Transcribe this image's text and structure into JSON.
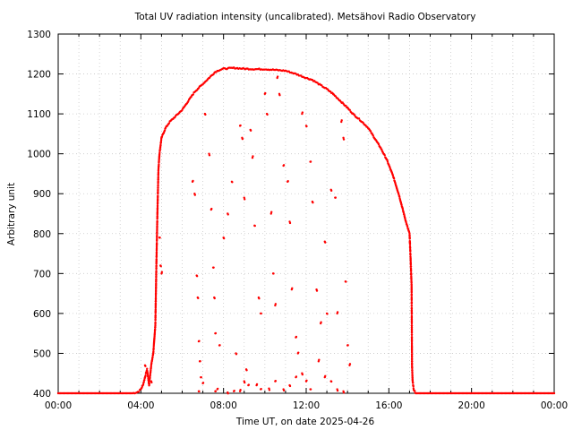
{
  "chart_data": {
    "type": "scatter",
    "title": "Total UV radiation intensity (uncalibrated). Metsähovi Radio Observatory",
    "xlabel": "Time UT, on date 2025-04-26",
    "ylabel": "Arbitrary unit",
    "x_unit": "hours UT",
    "xlim": [
      0,
      24
    ],
    "ylim": [
      400,
      1300
    ],
    "x_ticks": [
      {
        "value": 0,
        "label": "00:00"
      },
      {
        "value": 4,
        "label": "04:00"
      },
      {
        "value": 8,
        "label": "08:00"
      },
      {
        "value": 12,
        "label": "12:00"
      },
      {
        "value": 16,
        "label": "16:00"
      },
      {
        "value": 20,
        "label": "20:00"
      },
      {
        "value": 24,
        "label": "00:00"
      }
    ],
    "y_ticks": [
      400,
      500,
      600,
      700,
      800,
      900,
      1000,
      1100,
      1200,
      1300
    ],
    "grid": true,
    "grid_style": "dotted",
    "legend": "none",
    "color": "#ff0000",
    "series": [
      {
        "values": [
          [
            0.0,
            400
          ],
          [
            3.6,
            400
          ],
          [
            3.8,
            402
          ],
          [
            3.9,
            405
          ],
          [
            4.0,
            410
          ],
          [
            4.1,
            420
          ],
          [
            4.2,
            440
          ],
          [
            4.3,
            460
          ],
          [
            4.4,
            420
          ],
          [
            4.5,
            470
          ],
          [
            4.6,
            500
          ],
          [
            4.7,
            570
          ],
          [
            4.75,
            720
          ],
          [
            4.8,
            850
          ],
          [
            4.85,
            960
          ],
          [
            4.9,
            1000
          ],
          [
            4.95,
            1020
          ],
          [
            5.0,
            1040
          ],
          [
            5.2,
            1065
          ],
          [
            5.4,
            1080
          ],
          [
            5.6,
            1090
          ],
          [
            5.8,
            1100
          ],
          [
            6.0,
            1110
          ],
          [
            6.2,
            1125
          ],
          [
            6.4,
            1140
          ],
          [
            6.6,
            1155
          ],
          [
            6.8,
            1165
          ],
          [
            7.0,
            1175
          ],
          [
            7.2,
            1185
          ],
          [
            7.4,
            1195
          ],
          [
            7.6,
            1205
          ],
          [
            7.8,
            1210
          ],
          [
            8.0,
            1213
          ],
          [
            8.5,
            1215
          ],
          [
            9.0,
            1213
          ],
          [
            9.5,
            1212
          ],
          [
            10.0,
            1212
          ],
          [
            10.5,
            1210
          ],
          [
            11.0,
            1208
          ],
          [
            11.5,
            1200
          ],
          [
            12.0,
            1190
          ],
          [
            12.3,
            1185
          ],
          [
            12.6,
            1175
          ],
          [
            13.0,
            1162
          ],
          [
            13.3,
            1150
          ],
          [
            13.6,
            1135
          ],
          [
            14.0,
            1115
          ],
          [
            14.3,
            1098
          ],
          [
            14.6,
            1085
          ],
          [
            15.0,
            1065
          ],
          [
            15.3,
            1040
          ],
          [
            15.6,
            1015
          ],
          [
            15.9,
            985
          ],
          [
            16.2,
            945
          ],
          [
            16.5,
            895
          ],
          [
            16.7,
            855
          ],
          [
            16.85,
            825
          ],
          [
            17.0,
            800
          ],
          [
            17.05,
            740
          ],
          [
            17.1,
            670
          ],
          [
            17.12,
            470
          ],
          [
            17.15,
            430
          ],
          [
            17.2,
            410
          ],
          [
            17.3,
            400
          ],
          [
            24.0,
            400
          ]
        ]
      },
      {
        "values": [
          [
            4.9,
            790
          ],
          [
            4.95,
            720
          ],
          [
            5.0,
            700
          ],
          [
            6.5,
            930
          ],
          [
            6.6,
            900
          ],
          [
            6.7,
            695
          ],
          [
            6.75,
            640
          ],
          [
            6.8,
            530
          ],
          [
            6.85,
            480
          ],
          [
            6.9,
            440
          ],
          [
            7.1,
            1100
          ],
          [
            7.3,
            1000
          ],
          [
            7.4,
            860
          ],
          [
            7.5,
            715
          ],
          [
            7.55,
            640
          ],
          [
            7.6,
            550
          ],
          [
            7.7,
            410
          ],
          [
            7.8,
            520
          ],
          [
            8.0,
            790
          ],
          [
            8.2,
            850
          ],
          [
            8.4,
            930
          ],
          [
            8.6,
            500
          ],
          [
            8.8,
            1070
          ],
          [
            8.9,
            1040
          ],
          [
            9.0,
            890
          ],
          [
            9.1,
            460
          ],
          [
            9.3,
            1060
          ],
          [
            9.4,
            990
          ],
          [
            9.5,
            820
          ],
          [
            9.7,
            640
          ],
          [
            9.8,
            600
          ],
          [
            10.0,
            1150
          ],
          [
            10.1,
            1100
          ],
          [
            10.3,
            850
          ],
          [
            10.4,
            700
          ],
          [
            10.5,
            620
          ],
          [
            10.6,
            1190
          ],
          [
            10.7,
            1150
          ],
          [
            10.9,
            970
          ],
          [
            11.1,
            930
          ],
          [
            11.2,
            830
          ],
          [
            11.3,
            660
          ],
          [
            11.5,
            540
          ],
          [
            11.6,
            500
          ],
          [
            11.8,
            1100
          ],
          [
            12.0,
            1070
          ],
          [
            12.2,
            980
          ],
          [
            12.3,
            880
          ],
          [
            12.5,
            660
          ],
          [
            12.7,
            575
          ],
          [
            12.9,
            780
          ],
          [
            13.0,
            600
          ],
          [
            13.2,
            910
          ],
          [
            13.3,
            1150
          ],
          [
            13.4,
            890
          ],
          [
            13.5,
            600
          ],
          [
            13.7,
            1080
          ],
          [
            13.8,
            1040
          ],
          [
            13.9,
            680
          ],
          [
            14.0,
            520
          ]
        ]
      },
      {
        "values": [
          [
            4.2,
            470
          ],
          [
            4.5,
            430
          ],
          [
            6.8,
            405
          ],
          [
            7.0,
            425
          ],
          [
            7.6,
            405
          ],
          [
            8.2,
            402
          ],
          [
            8.5,
            405
          ],
          [
            8.8,
            405
          ],
          [
            9.0,
            430
          ],
          [
            9.2,
            420
          ],
          [
            9.6,
            420
          ],
          [
            9.8,
            410
          ],
          [
            10.2,
            412
          ],
          [
            10.5,
            430
          ],
          [
            10.9,
            410
          ],
          [
            11.2,
            420
          ],
          [
            11.5,
            440
          ],
          [
            11.8,
            450
          ],
          [
            12.0,
            430
          ],
          [
            12.2,
            410
          ],
          [
            12.6,
            480
          ],
          [
            12.9,
            440
          ],
          [
            13.2,
            430
          ],
          [
            13.5,
            410
          ],
          [
            13.8,
            405
          ],
          [
            14.1,
            470
          ]
        ]
      }
    ]
  }
}
